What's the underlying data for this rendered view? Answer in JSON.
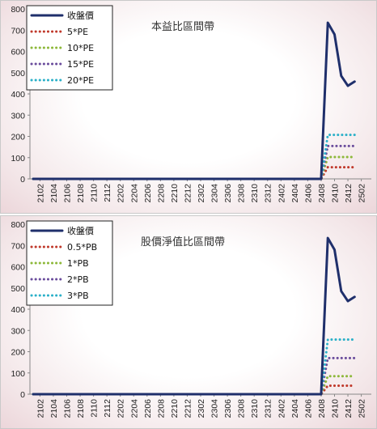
{
  "chart_data": [
    {
      "type": "line",
      "title": "本益比區間帶",
      "xlabel": "",
      "ylabel": "",
      "ylim": [
        0,
        800
      ],
      "yticks": [
        0,
        100,
        200,
        300,
        400,
        500,
        600,
        700,
        800
      ],
      "x_tick_labels": [
        "2102",
        "2104",
        "2106",
        "2108",
        "2110",
        "2112",
        "2202",
        "2204",
        "2206",
        "2208",
        "2210",
        "2212",
        "2302",
        "2304",
        "2306",
        "2308",
        "2310",
        "2312",
        "2402",
        "2404",
        "2406",
        "2408",
        "2410",
        "2412",
        "2502"
      ],
      "x_start": "2101",
      "x_end": "2503",
      "grid": false,
      "legend": "top-left",
      "series": [
        {
          "name": "收盤價",
          "color": "#1f2f6b",
          "style": "solid",
          "values": [
            [
              1,
              0
            ],
            [
              44,
              0
            ],
            [
              45,
              735
            ],
            [
              46,
              680
            ],
            [
              47,
              485
            ],
            [
              48,
              438
            ],
            [
              49,
              458
            ]
          ]
        },
        {
          "name": "5*PE",
          "color": "#c0392b",
          "style": "dotted",
          "values": [
            [
              1,
              0
            ],
            [
              44,
              0
            ],
            [
              45,
              55
            ],
            [
              49,
              55
            ]
          ]
        },
        {
          "name": "10*PE",
          "color": "#8db83a",
          "style": "dotted",
          "values": [
            [
              1,
              0
            ],
            [
              44,
              0
            ],
            [
              45,
              103
            ],
            [
              49,
              103
            ]
          ]
        },
        {
          "name": "15*PE",
          "color": "#6a4c9c",
          "style": "dotted",
          "values": [
            [
              1,
              0
            ],
            [
              44,
              0
            ],
            [
              45,
              155
            ],
            [
              49,
              155
            ]
          ]
        },
        {
          "name": "20*PE",
          "color": "#2bb0c8",
          "style": "dotted",
          "values": [
            [
              1,
              0
            ],
            [
              44,
              0
            ],
            [
              45,
              207
            ],
            [
              49,
              207
            ]
          ]
        }
      ]
    },
    {
      "type": "line",
      "title": "股價淨值比區間帶",
      "xlabel": "",
      "ylabel": "",
      "ylim": [
        0,
        800
      ],
      "yticks": [
        0,
        100,
        200,
        300,
        400,
        500,
        600,
        700,
        800
      ],
      "x_tick_labels": [
        "2102",
        "2104",
        "2106",
        "2108",
        "2110",
        "2112",
        "2202",
        "2204",
        "2206",
        "2208",
        "2210",
        "2212",
        "2302",
        "2304",
        "2306",
        "2308",
        "2310",
        "2312",
        "2402",
        "2404",
        "2406",
        "2408",
        "2410",
        "2412",
        "2502"
      ],
      "x_start": "2101",
      "x_end": "2503",
      "grid": false,
      "legend": "top-left",
      "series": [
        {
          "name": "收盤價",
          "color": "#1f2f6b",
          "style": "solid",
          "values": [
            [
              1,
              0
            ],
            [
              44,
              0
            ],
            [
              45,
              735
            ],
            [
              46,
              680
            ],
            [
              47,
              485
            ],
            [
              48,
              438
            ],
            [
              49,
              458
            ]
          ]
        },
        {
          "name": "0.5*PB",
          "color": "#c0392b",
          "style": "dotted",
          "values": [
            [
              1,
              0
            ],
            [
              44,
              0
            ],
            [
              45,
              40
            ],
            [
              49,
              40
            ]
          ]
        },
        {
          "name": "1*PB",
          "color": "#8db83a",
          "style": "dotted",
          "values": [
            [
              1,
              0
            ],
            [
              44,
              0
            ],
            [
              45,
              85
            ],
            [
              49,
              85
            ]
          ]
        },
        {
          "name": "2*PB",
          "color": "#6a4c9c",
          "style": "dotted",
          "values": [
            [
              1,
              0
            ],
            [
              44,
              0
            ],
            [
              45,
              170
            ],
            [
              49,
              170
            ]
          ]
        },
        {
          "name": "3*PB",
          "color": "#2bb0c8",
          "style": "dotted",
          "values": [
            [
              1,
              0
            ],
            [
              44,
              0
            ],
            [
              45,
              257
            ],
            [
              49,
              257
            ]
          ]
        }
      ]
    }
  ]
}
